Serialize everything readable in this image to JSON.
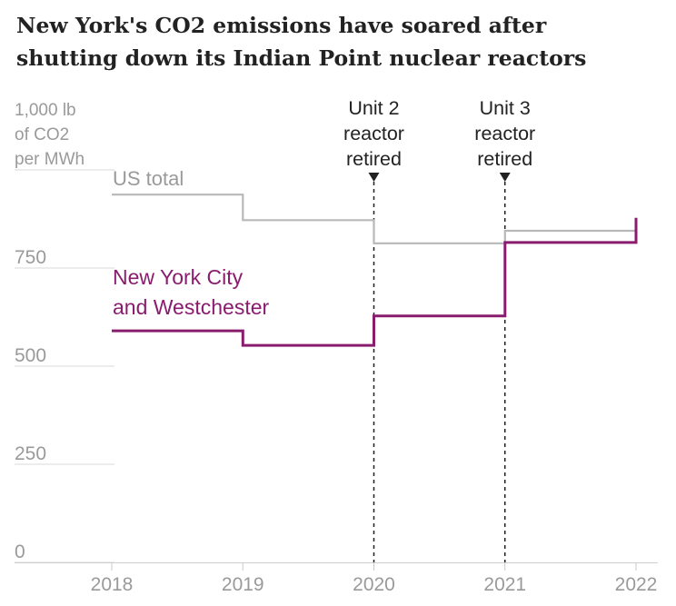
{
  "title_line1": "New York's CO2 emissions have soared after",
  "title_line2": "shutting down its Indian Point nuclear reactors",
  "chart_data": {
    "type": "line",
    "step": true,
    "ylabel_lines": [
      "1,000 lb",
      "of CO2",
      "per MWh"
    ],
    "ylim": [
      0,
      1000
    ],
    "y_ticks": [
      {
        "value": 0,
        "label": "0"
      },
      {
        "value": 250,
        "label": "250"
      },
      {
        "value": 500,
        "label": "500"
      },
      {
        "value": 750,
        "label": "750"
      }
    ],
    "xlim": [
      2018,
      2022
    ],
    "x_ticks": [
      {
        "value": 2018,
        "label": "2018"
      },
      {
        "value": 2019,
        "label": "2019"
      },
      {
        "value": 2020,
        "label": "2020"
      },
      {
        "value": 2021,
        "label": "2021"
      },
      {
        "value": 2022,
        "label": "2022"
      }
    ],
    "series": [
      {
        "name": "US total",
        "label_lines": [
          "US total"
        ],
        "color": "#b8b8b8",
        "points": [
          [
            2018,
            937
          ],
          [
            2019,
            872
          ],
          [
            2020,
            813
          ],
          [
            2021,
            845
          ],
          [
            2022,
            845
          ]
        ]
      },
      {
        "name": "New York City and Westchester",
        "label_lines": [
          "New York City",
          "and Westchester"
        ],
        "color": "#8a1c6e",
        "points": [
          [
            2018,
            590
          ],
          [
            2019,
            553
          ],
          [
            2020,
            628
          ],
          [
            2021,
            815
          ],
          [
            2022,
            878
          ]
        ]
      }
    ],
    "annotations": [
      {
        "x": 2020,
        "lines": [
          "Unit 2",
          "reactor",
          "retired"
        ]
      },
      {
        "x": 2021,
        "lines": [
          "Unit 3",
          "reactor",
          "retired"
        ]
      }
    ]
  }
}
